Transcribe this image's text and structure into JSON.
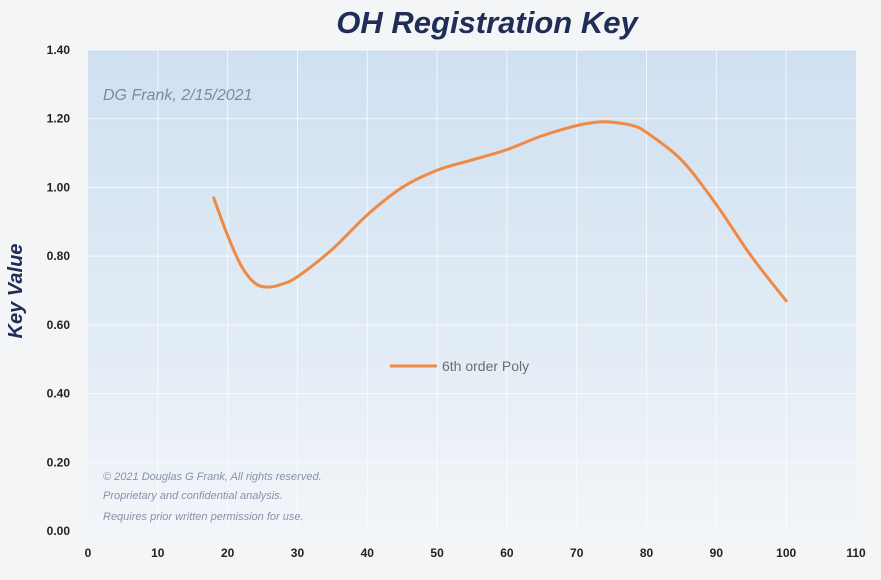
{
  "chart_data": {
    "type": "line",
    "title": "OH Registration Key",
    "xlabel": "",
    "ylabel": "Key Value",
    "credit": "DG Frank, 2/15/2021",
    "copyright": [
      "© 2021 Douglas G Frank, All rights reserved.",
      "Proprietary and confidential analysis.",
      "Requires prior written permission for use."
    ],
    "xlim": [
      0,
      110
    ],
    "ylim": [
      0,
      1.4
    ],
    "x_ticks": [
      "0",
      "10",
      "20",
      "30",
      "40",
      "50",
      "60",
      "70",
      "80",
      "90",
      "100",
      "110"
    ],
    "y_ticks": [
      "0.00",
      "0.20",
      "0.40",
      "0.60",
      "0.80",
      "1.00",
      "1.20",
      "1.40"
    ],
    "grid": true,
    "legend_position": "center",
    "series": [
      {
        "name": "6th order Poly",
        "color": "#ee8a45",
        "x": [
          18,
          20,
          22,
          24,
          26,
          28,
          30,
          35,
          40,
          45,
          50,
          55,
          60,
          65,
          70,
          73,
          75,
          78,
          80,
          85,
          90,
          95,
          100
        ],
        "y": [
          0.97,
          0.86,
          0.77,
          0.72,
          0.71,
          0.72,
          0.74,
          0.82,
          0.92,
          1.0,
          1.05,
          1.08,
          1.11,
          1.15,
          1.18,
          1.19,
          1.19,
          1.18,
          1.16,
          1.08,
          0.95,
          0.8,
          0.67
        ]
      }
    ]
  }
}
